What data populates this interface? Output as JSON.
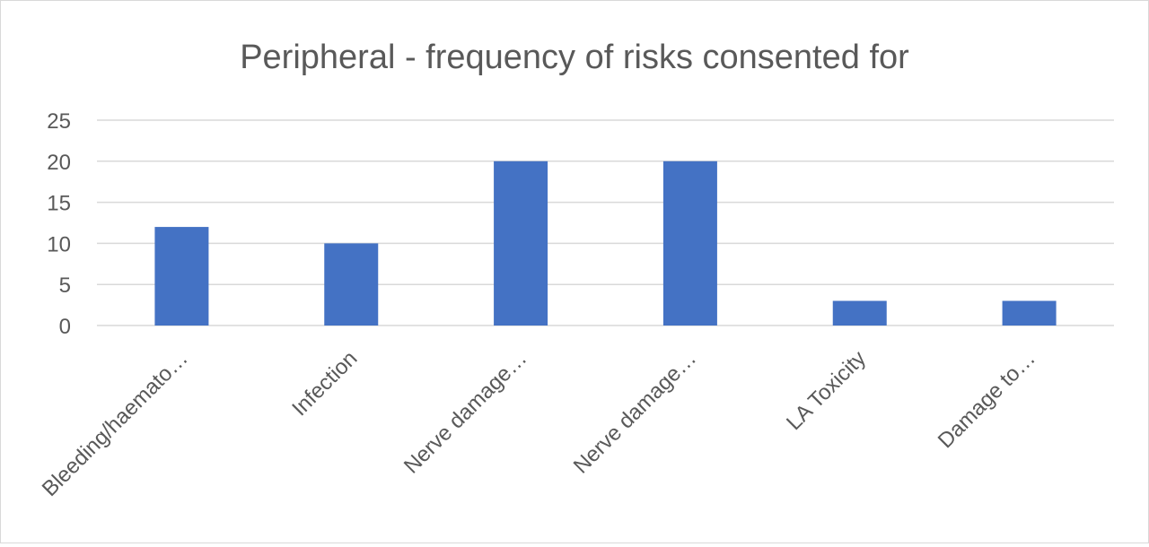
{
  "chart_data": {
    "type": "bar",
    "title": "Peripheral - frequency of risks consented for",
    "xlabel": "",
    "ylabel": "",
    "categories": [
      "Bleeding/haemato…",
      "Infection",
      "Nerve damage…",
      "Nerve damage…",
      "LA Toxicity",
      "Damage to…"
    ],
    "values": [
      12,
      10,
      20,
      20,
      3,
      3
    ],
    "ylim": [
      0,
      25
    ],
    "yticks": [
      "0",
      "5",
      "10",
      "15",
      "20",
      "25"
    ],
    "grid": true,
    "legend": "none",
    "colors": {
      "bar": "#4472C4",
      "grid": "#d9d9d9",
      "text": "#595959",
      "title": "#595959"
    }
  }
}
